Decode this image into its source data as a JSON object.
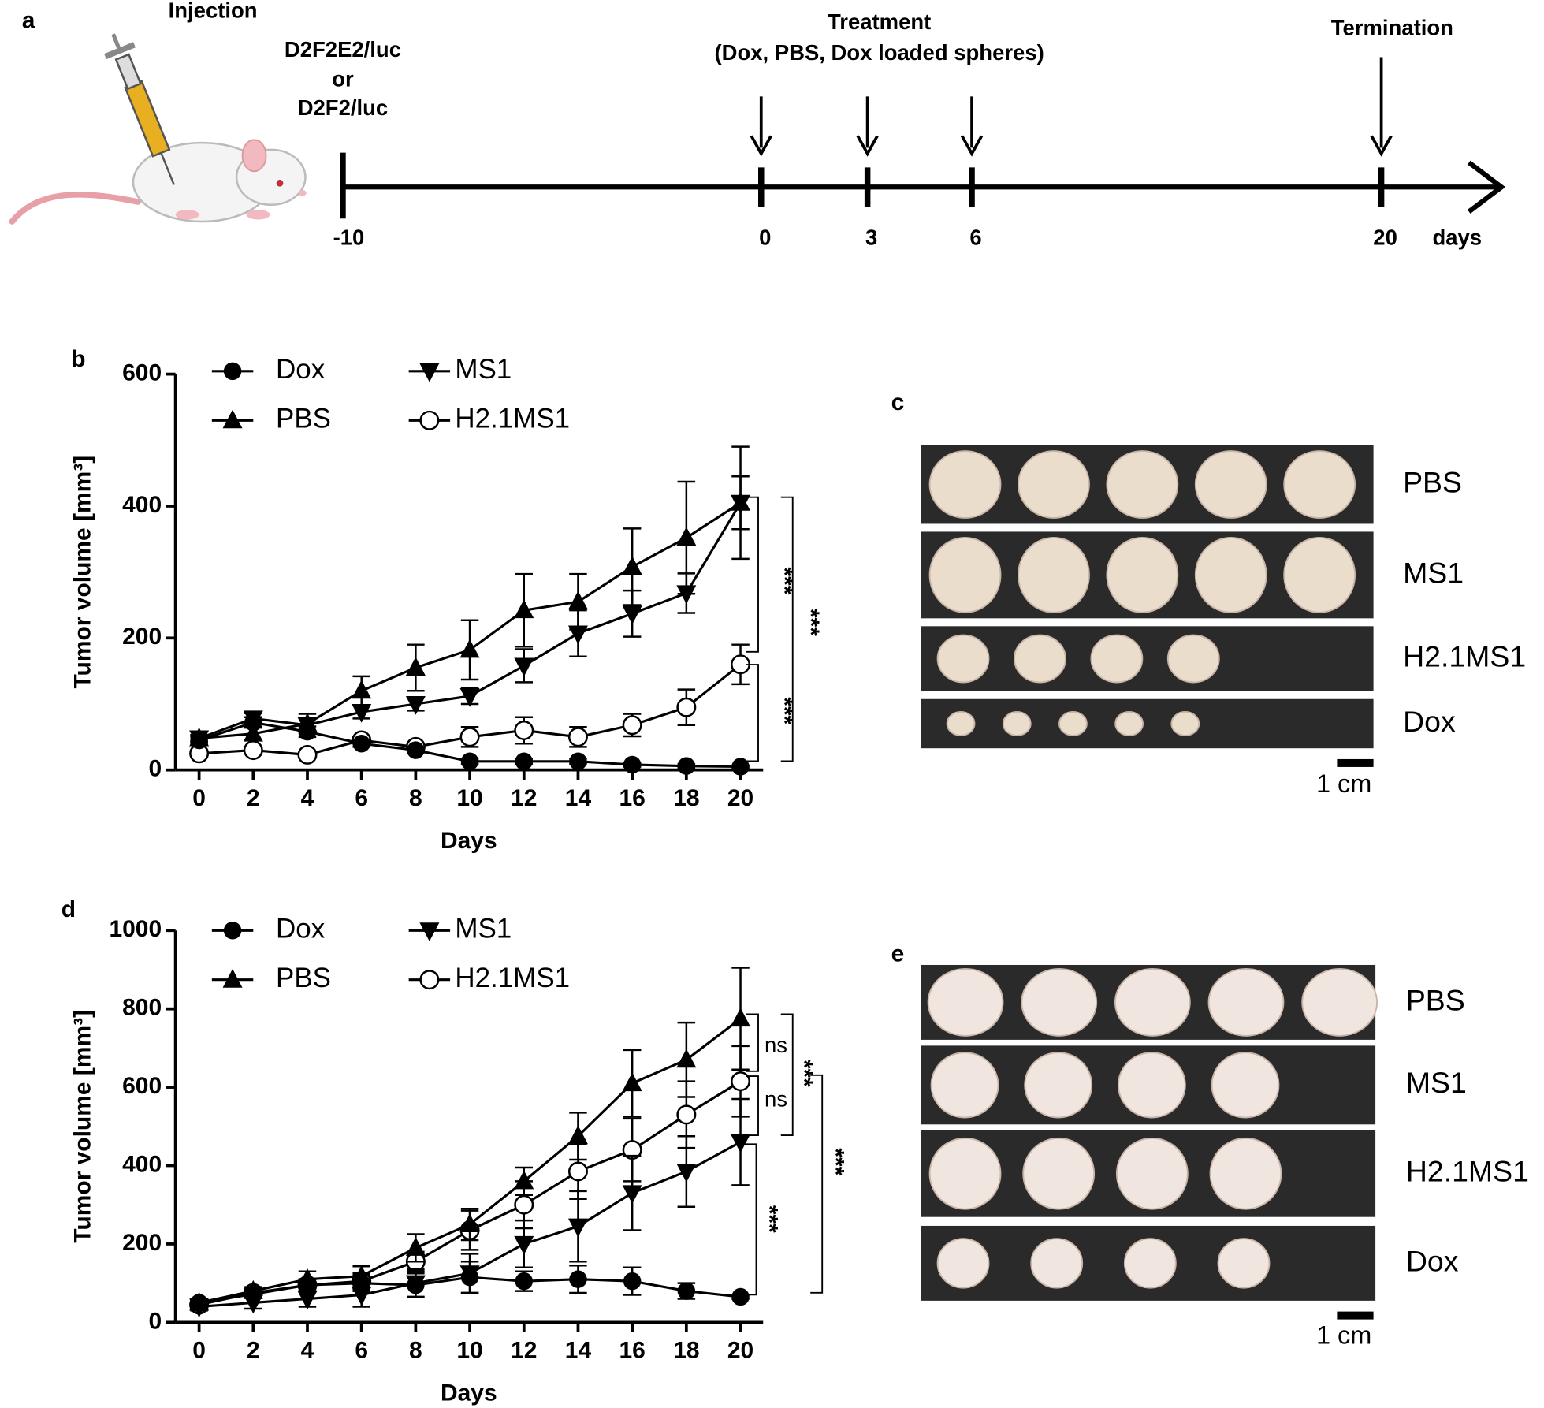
{
  "panel_labels": [
    "a",
    "b",
    "c",
    "d",
    "e"
  ],
  "timeline": {
    "injection": "Injection",
    "cells": [
      "D2F2E2/luc",
      "or",
      "D2F2/luc"
    ],
    "treatment": [
      "Treatment",
      "(Dox, PBS, Dox loaded spheres)"
    ],
    "termination": "Termination",
    "ticks": [
      -10,
      0,
      3,
      6,
      20
    ],
    "unit": "days"
  },
  "chart_data": [
    {
      "type": "line",
      "x_label": "Days",
      "y_label": "Tumor volume [mm³]",
      "x": [
        0,
        2,
        4,
        6,
        8,
        10,
        12,
        14,
        16,
        18,
        20
      ],
      "xlim": [
        -1,
        21
      ],
      "xticks": [
        0,
        2,
        4,
        6,
        8,
        10,
        12,
        14,
        16,
        18,
        20
      ],
      "ylim": [
        0,
        600
      ],
      "yticks": [
        0,
        200,
        400,
        600
      ],
      "series": [
        {
          "name": "Dox",
          "color": "#000000",
          "marker": "circle",
          "values": [
            45,
            72,
            58,
            40,
            30,
            13,
            13,
            13,
            8,
            6,
            5
          ],
          "errors": [
            5,
            8,
            8,
            5,
            5,
            4,
            4,
            4,
            3,
            3,
            2
          ]
        },
        {
          "name": "PBS",
          "color": "#000000",
          "marker": "triangle-up",
          "values": [
            48,
            55,
            70,
            120,
            155,
            182,
            242,
            255,
            308,
            352,
            405
          ],
          "errors": [
            5,
            10,
            15,
            22,
            35,
            45,
            55,
            42,
            58,
            85,
            85
          ]
        },
        {
          "name": "MS1",
          "color": "#000000",
          "marker": "triangle-down",
          "values": [
            48,
            78,
            68,
            88,
            100,
            112,
            158,
            207,
            237,
            268,
            405
          ],
          "errors": [
            5,
            8,
            10,
            10,
            10,
            12,
            25,
            35,
            35,
            30,
            40
          ]
        },
        {
          "name": "H2.1MS1",
          "color": "#000000",
          "marker": "circle-open",
          "values": [
            25,
            30,
            23,
            45,
            35,
            50,
            60,
            50,
            68,
            95,
            160
          ],
          "errors": [
            5,
            5,
            5,
            5,
            5,
            15,
            20,
            15,
            17,
            27,
            30
          ]
        }
      ],
      "annotations": [
        "***",
        "***",
        "***"
      ]
    },
    {
      "type": "line",
      "x_label": "Days",
      "y_label": "Tumor volume [mm³]",
      "x": [
        0,
        2,
        4,
        6,
        8,
        10,
        12,
        14,
        16,
        18,
        20
      ],
      "xlim": [
        -1,
        21
      ],
      "xticks": [
        0,
        2,
        4,
        6,
        8,
        10,
        12,
        14,
        16,
        18,
        20
      ],
      "ylim": [
        0,
        1000
      ],
      "yticks": [
        0,
        200,
        400,
        600,
        800,
        1000
      ],
      "series": [
        {
          "name": "Dox",
          "color": "#000000",
          "marker": "circle",
          "values": [
            50,
            72,
            95,
            100,
            95,
            115,
            105,
            110,
            105,
            80,
            65
          ],
          "errors": [
            10,
            10,
            15,
            20,
            30,
            40,
            25,
            35,
            35,
            20,
            5
          ]
        },
        {
          "name": "PBS",
          "color": "#000000",
          "marker": "triangle-up",
          "values": [
            50,
            80,
            110,
            118,
            190,
            250,
            360,
            475,
            610,
            670,
            775
          ],
          "errors": [
            10,
            10,
            20,
            25,
            35,
            40,
            35,
            60,
            85,
            95,
            130
          ]
        },
        {
          "name": "MS1",
          "color": "#000000",
          "marker": "triangle-down",
          "values": [
            40,
            50,
            60,
            70,
            100,
            125,
            200,
            245,
            330,
            385,
            460
          ],
          "errors": [
            10,
            15,
            20,
            30,
            35,
            50,
            60,
            90,
            95,
            90,
            110
          ]
        },
        {
          "name": "H2.1MS1",
          "color": "#000000",
          "marker": "circle-open",
          "values": [
            45,
            75,
            95,
            105,
            155,
            235,
            300,
            385,
            440,
            530,
            615
          ],
          "errors": [
            10,
            10,
            15,
            20,
            25,
            50,
            60,
            70,
            80,
            85,
            90
          ]
        }
      ],
      "annotations": [
        "ns",
        "ns",
        "***",
        "***",
        "***"
      ]
    }
  ],
  "photos": [
    {
      "groups": [
        "PBS",
        "MS1",
        "H2.1MS1",
        "Dox"
      ],
      "scale_bar": "1 cm"
    },
    {
      "groups": [
        "PBS",
        "MS1",
        "H2.1MS1",
        "Dox"
      ],
      "scale_bar": "1 cm"
    }
  ]
}
